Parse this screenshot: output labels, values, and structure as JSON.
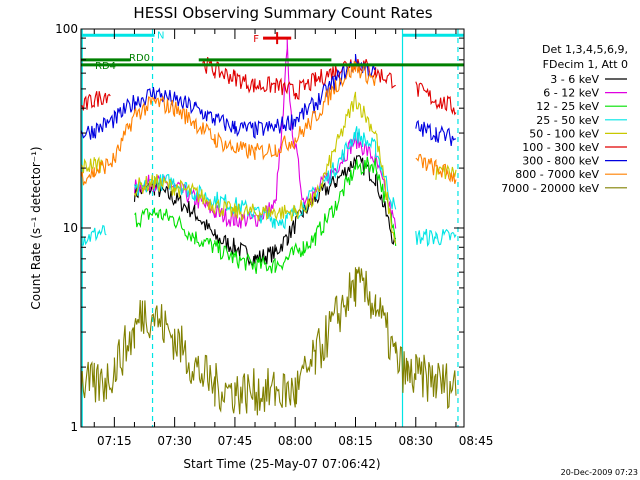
{
  "chart_data": {
    "type": "line",
    "title": "HESSI Observing Summary Count Rates",
    "xlabel": "Start Time (25-May-07 07:06:42)",
    "ylabel": "Count Rate (s⁻¹ detector⁻¹)",
    "yscale": "log",
    "ylim": [
      1,
      100
    ],
    "xlim_minutes": [
      6.7,
      102
    ],
    "x_tick_labels": [
      "07:15",
      "07:30",
      "07:45",
      "08:00",
      "08:15",
      "08:30",
      "08:45"
    ],
    "x_tick_minutes": [
      15,
      30,
      45,
      60,
      75,
      90,
      105
    ],
    "y_tick_labels": [
      "1",
      "10",
      "100"
    ],
    "y_tick_values": [
      1,
      10,
      100
    ],
    "legend_header": [
      "Det 1,3,4,5,6,9,",
      "FDecim 1, Att 0"
    ],
    "legend_position": "right",
    "footer_date": "20-Dec-2009 07:23",
    "flags": [
      {
        "label": "N",
        "color": "#00e5e5",
        "y": 93,
        "segments": [
          [
            6.7,
            25
          ],
          [
            86.7,
            102
          ]
        ]
      },
      {
        "label": "RD0",
        "color": "#008000",
        "y": 70,
        "segments": [
          [
            6.7,
            19
          ],
          [
            36,
            69
          ]
        ]
      },
      {
        "label": "RD4",
        "color": "#008000",
        "y": 66,
        "segments": [
          [
            6.7,
            102
          ]
        ]
      },
      {
        "label": "F",
        "color": "#e00000",
        "y": 90,
        "segments": [
          [
            52,
            59
          ]
        ]
      }
    ],
    "verticals": [
      {
        "kind": "solid",
        "color": "#00e5e5",
        "x": [
          7.0,
          86.7
        ]
      },
      {
        "kind": "dashed",
        "color": "#00e5e5",
        "x": [
          24.5,
          100.5
        ]
      }
    ],
    "series": [
      {
        "name": "3 - 6 keV",
        "color": "#000000",
        "x": [
          10,
          15,
          20,
          25,
          30,
          35,
          40,
          45,
          50,
          55,
          58,
          62,
          65,
          70,
          75,
          80,
          85,
          90,
          95,
          100
        ],
        "y": [
          null,
          null,
          15,
          16,
          14,
          12,
          9,
          8,
          7,
          7.5,
          9,
          12,
          14,
          17,
          22,
          18,
          8,
          null,
          null,
          null
        ]
      },
      {
        "name": "6 - 12 keV",
        "color": "#e000e0",
        "x": [
          10,
          15,
          20,
          25,
          30,
          35,
          40,
          45,
          50,
          55,
          57,
          58,
          59,
          62,
          65,
          70,
          75,
          80,
          85,
          90,
          95,
          100
        ],
        "y": [
          null,
          null,
          16,
          17,
          16,
          14,
          12,
          11,
          11,
          13,
          35,
          85,
          35,
          14,
          15,
          20,
          28,
          22,
          10,
          null,
          null,
          null
        ]
      },
      {
        "name": "12 - 25 keV",
        "color": "#00e000",
        "x": [
          10,
          15,
          20,
          25,
          30,
          35,
          40,
          45,
          50,
          55,
          58,
          62,
          65,
          70,
          75,
          80,
          85,
          90,
          95,
          100
        ],
        "y": [
          null,
          null,
          11,
          12,
          11,
          9,
          8,
          7,
          6.5,
          6.5,
          7,
          8,
          9,
          13,
          20,
          21,
          9,
          null,
          null,
          null
        ]
      },
      {
        "name": "25 - 50 keV",
        "color": "#00e5e5",
        "x": [
          6.7,
          9,
          11,
          13,
          15,
          20,
          25,
          30,
          35,
          40,
          45,
          50,
          55,
          58,
          62,
          65,
          70,
          75,
          80,
          85,
          86.7,
          88,
          90,
          95,
          100
        ],
        "y": [
          9,
          9,
          9.5,
          9.5,
          null,
          15,
          17,
          17,
          15,
          14,
          13,
          12,
          11,
          11,
          13,
          15,
          20,
          30,
          25,
          12,
          null,
          null,
          9,
          9,
          9
        ]
      },
      {
        "name": "50 - 100 keV",
        "color": "#c8c800",
        "x": [
          6.7,
          10,
          12,
          15,
          20,
          25,
          30,
          35,
          40,
          45,
          50,
          55,
          60,
          65,
          70,
          75,
          80,
          85,
          88,
          90,
          95,
          100
        ],
        "y": [
          20,
          21,
          21,
          null,
          16,
          17,
          16,
          15,
          13,
          12,
          12,
          12,
          12,
          14,
          25,
          45,
          30,
          8,
          null,
          null,
          19,
          19
        ]
      },
      {
        "name": "100 - 300 keV",
        "color": "#e00000",
        "x": [
          6.7,
          10,
          14,
          16,
          20,
          25,
          30,
          35,
          37,
          40,
          45,
          50,
          55,
          60,
          65,
          70,
          75,
          80,
          85,
          88,
          90,
          95,
          100
        ],
        "y": [
          40,
          44,
          48,
          null,
          null,
          null,
          null,
          null,
          68,
          62,
          57,
          52,
          52,
          48,
          55,
          62,
          70,
          60,
          55,
          null,
          50,
          44,
          40
        ]
      },
      {
        "name": "300 - 800 keV",
        "color": "#0000e0",
        "x": [
          6.7,
          10,
          15,
          20,
          25,
          30,
          35,
          40,
          45,
          50,
          55,
          60,
          65,
          70,
          75,
          80,
          85,
          90,
          95,
          100
        ],
        "y": [
          30,
          31,
          35,
          43,
          48,
          44,
          40,
          35,
          32,
          31,
          32,
          35,
          42,
          55,
          68,
          60,
          null,
          32,
          30,
          28
        ]
      },
      {
        "name": "800 - 7000 keV",
        "color": "#ff8000",
        "x": [
          6.7,
          10,
          15,
          20,
          25,
          30,
          35,
          40,
          45,
          50,
          55,
          60,
          65,
          70,
          75,
          80,
          85,
          90,
          95,
          100
        ],
        "y": [
          18,
          19,
          22,
          37,
          43,
          40,
          34,
          28,
          25,
          24,
          25,
          28,
          36,
          52,
          65,
          55,
          null,
          22,
          20,
          18
        ]
      },
      {
        "name": "7000 - 20000 keV",
        "color": "#808000",
        "x": [
          6.7,
          10,
          13,
          15,
          20,
          22,
          25,
          30,
          35,
          40,
          45,
          50,
          55,
          60,
          65,
          70,
          75,
          80,
          85,
          88,
          90,
          95,
          100
        ],
        "y": [
          1.7,
          1.6,
          1.7,
          2,
          3,
          3.8,
          3.6,
          2.8,
          2,
          1.6,
          1.5,
          1.5,
          1.5,
          1.5,
          2.2,
          3.5,
          5.2,
          4.2,
          2.2,
          1.8,
          1.8,
          1.7,
          1.6
        ]
      }
    ]
  }
}
